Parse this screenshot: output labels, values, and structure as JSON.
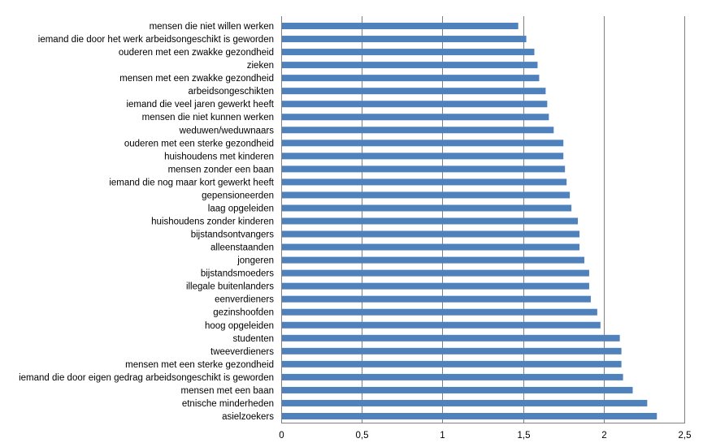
{
  "chart_data": {
    "type": "bar",
    "orientation": "horizontal",
    "title": "",
    "xlabel": "",
    "ylabel": "",
    "xlim": [
      0,
      2.5
    ],
    "x_ticks": [
      "0",
      "0,5",
      "1",
      "1,5",
      "2",
      "2,5"
    ],
    "grid": true,
    "bar_color": "#4F81BD",
    "grid_color": "#808080",
    "categories": [
      "mensen die niet willen werken",
      "iemand die door het werk arbeidsongeschikt is geworden",
      "ouderen met een zwakke gezondheid",
      "zieken",
      "mensen met een zwakke gezondheid",
      "arbeidsongeschikten",
      "iemand die veel jaren gewerkt heeft",
      "mensen die niet kunnen werken",
      "weduwen/weduwnaars",
      "ouderen met een sterke gezondheid",
      "huishoudens met kinderen",
      "mensen zonder een baan",
      "iemand die nog maar kort gewerkt heeft",
      "gepensioneerden",
      "laag opgeleiden",
      "huishoudens zonder kinderen",
      "bijstandsontvangers",
      "alleenstaanden",
      "jongeren",
      "bijstandsmoeders",
      "illegale buitenlanders",
      "eenverdieners",
      "gezinshoofden",
      "hoog opgeleiden",
      "studenten",
      "tweeverdieners",
      "mensen met een sterke gezondheid",
      "iemand die door eigen gedrag arbeidsongeschikt is geworden",
      "mensen met een baan",
      "etnische minderheden",
      "asielzoekers"
    ],
    "values": [
      1.47,
      1.52,
      1.57,
      1.59,
      1.6,
      1.64,
      1.65,
      1.66,
      1.69,
      1.75,
      1.75,
      1.76,
      1.77,
      1.79,
      1.8,
      1.84,
      1.85,
      1.85,
      1.88,
      1.91,
      1.91,
      1.92,
      1.96,
      1.98,
      2.1,
      2.11,
      2.11,
      2.12,
      2.18,
      2.27,
      2.33
    ]
  }
}
